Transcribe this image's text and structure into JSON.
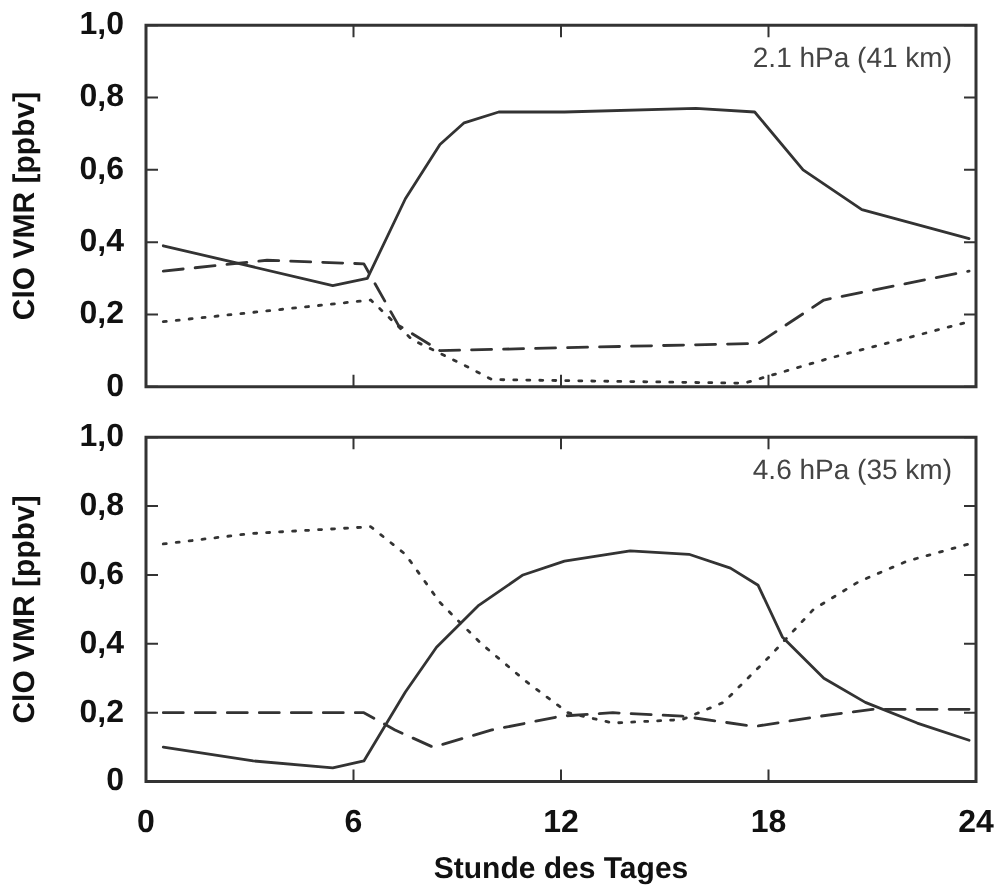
{
  "chart_data": [
    {
      "type": "line",
      "ylabel": "ClO VMR [ppbv]",
      "annotations": [
        "2.1 hPa (41 km)"
      ],
      "xlim": [
        0,
        24
      ],
      "xticks": [
        0,
        6,
        12,
        18,
        24
      ],
      "ylim": [
        0,
        1
      ],
      "yticks": [
        {
          "value": 0,
          "label": "0"
        },
        {
          "value": 0.2,
          "label": "0,2"
        },
        {
          "value": 0.4,
          "label": "0,4"
        },
        {
          "value": 0.6,
          "label": "0,6"
        },
        {
          "value": 0.8,
          "label": "0,8"
        },
        {
          "value": 1,
          "label": "1,0"
        }
      ],
      "tick_labels": "y",
      "grid": false,
      "marker": "none",
      "series": [
        {
          "color": "#333333",
          "line_style": "solid",
          "x": [
            0.5,
            5.4,
            6.4,
            7.5,
            8.5,
            9.2,
            10.2,
            12.1,
            15.9,
            17.6,
            19,
            20.7,
            23.8
          ],
          "values": [
            0.39,
            0.28,
            0.3,
            0.52,
            0.67,
            0.73,
            0.76,
            0.76,
            0.77,
            0.76,
            0.6,
            0.49,
            0.41
          ]
        },
        {
          "color": "#333333",
          "line_style": "dashed",
          "x": [
            0.5,
            3.5,
            6.3,
            7.3,
            8.5,
            13,
            17.7,
            19.6,
            23.8
          ],
          "values": [
            0.32,
            0.35,
            0.34,
            0.17,
            0.1,
            0.11,
            0.12,
            0.24,
            0.32
          ]
        },
        {
          "color": "#333333",
          "line_style": "dotted",
          "x": [
            0.5,
            6.5,
            7.7,
            9.2,
            10,
            17.3,
            19.8,
            23.8
          ],
          "values": [
            0.18,
            0.24,
            0.13,
            0.06,
            0.02,
            0.01,
            0.08,
            0.18
          ]
        }
      ]
    },
    {
      "type": "line",
      "ylabel": "ClO VMR [ppbv]",
      "xlabel": "Stunde des Tages",
      "annotations": [
        "4.6 hPa (35 km)"
      ],
      "xlim": [
        0,
        24
      ],
      "xticks": [
        0,
        6,
        12,
        18,
        24
      ],
      "ylim": [
        0,
        1
      ],
      "yticks": [
        {
          "value": 0,
          "label": "0"
        },
        {
          "value": 0.2,
          "label": "0,2"
        },
        {
          "value": 0.4,
          "label": "0,4"
        },
        {
          "value": 0.6,
          "label": "0,6"
        },
        {
          "value": 0.8,
          "label": "0,8"
        },
        {
          "value": 1,
          "label": "1,0"
        }
      ],
      "grid": false,
      "marker": "none",
      "series": [
        {
          "color": "#333333",
          "line_style": "solid",
          "x": [
            0.5,
            3.1,
            5.4,
            6.3,
            7.5,
            8.4,
            9.6,
            10.9,
            12.1,
            14,
            15.7,
            16.9,
            17.7,
            18.4,
            19.6,
            20.8,
            22.3,
            23.8
          ],
          "values": [
            0.1,
            0.06,
            0.04,
            0.06,
            0.26,
            0.39,
            0.51,
            0.6,
            0.64,
            0.67,
            0.66,
            0.62,
            0.57,
            0.42,
            0.3,
            0.23,
            0.17,
            0.12
          ]
        },
        {
          "color": "#333333",
          "line_style": "dashed",
          "x": [
            0.5,
            6.3,
            7.2,
            8.3,
            10,
            12,
            13.5,
            15.5,
            17.6,
            19.5,
            21,
            23.8
          ],
          "values": [
            0.2,
            0.2,
            0.15,
            0.1,
            0.15,
            0.19,
            0.2,
            0.19,
            0.16,
            0.19,
            0.21,
            0.21
          ]
        },
        {
          "color": "#333333",
          "line_style": "dotted",
          "x": [
            0.5,
            3,
            6.5,
            7.5,
            8.5,
            9.7,
            11,
            12.2,
            13.5,
            15.5,
            16.7,
            18,
            19.3,
            20.6,
            22,
            23.8
          ],
          "values": [
            0.69,
            0.72,
            0.74,
            0.66,
            0.52,
            0.4,
            0.29,
            0.2,
            0.17,
            0.18,
            0.23,
            0.36,
            0.5,
            0.58,
            0.64,
            0.69
          ]
        }
      ]
    }
  ]
}
